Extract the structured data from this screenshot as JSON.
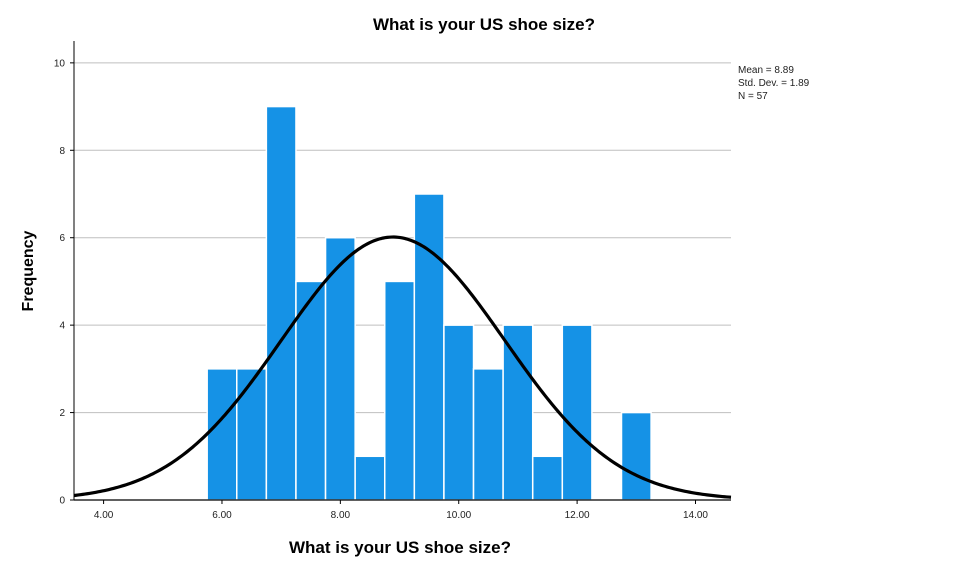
{
  "chart_data": {
    "type": "bar",
    "title": "What is your US shoe size?",
    "xlabel": "What is your US shoe size?",
    "ylabel": "Frequency",
    "xlim": [
      3.5,
      14.6
    ],
    "ylim": [
      0,
      10.5
    ],
    "x_ticks": [
      "4.00",
      "6.00",
      "8.00",
      "10.00",
      "12.00",
      "14.00"
    ],
    "x_tick_values": [
      4,
      6,
      8,
      10,
      12,
      14
    ],
    "y_ticks": [
      "0",
      "2",
      "4",
      "6",
      "8",
      "10"
    ],
    "y_tick_values": [
      0,
      2,
      4,
      6,
      8,
      10
    ],
    "bin_width": 0.5,
    "bins": [
      {
        "start": 5.75,
        "value": 3
      },
      {
        "start": 6.25,
        "value": 3
      },
      {
        "start": 6.75,
        "value": 9
      },
      {
        "start": 7.25,
        "value": 5
      },
      {
        "start": 7.75,
        "value": 6
      },
      {
        "start": 8.25,
        "value": 1
      },
      {
        "start": 8.75,
        "value": 5
      },
      {
        "start": 9.25,
        "value": 7
      },
      {
        "start": 9.75,
        "value": 4
      },
      {
        "start": 10.25,
        "value": 3
      },
      {
        "start": 10.75,
        "value": 4
      },
      {
        "start": 11.25,
        "value": 1
      },
      {
        "start": 11.75,
        "value": 4
      },
      {
        "start": 12.25,
        "value": 0
      },
      {
        "start": 12.75,
        "value": 2
      }
    ],
    "normal_curve": {
      "mean": 8.89,
      "std_dev": 1.89,
      "n": 57
    },
    "stats_labels": [
      "Mean =  8.89",
      "Std. Dev. =  1.89",
      "N = 57"
    ],
    "grid": true,
    "colors": {
      "bar": "#1592e6",
      "bar_edge": "#ffffff",
      "curve": "#000000",
      "grid": "#bfbfbf"
    }
  }
}
